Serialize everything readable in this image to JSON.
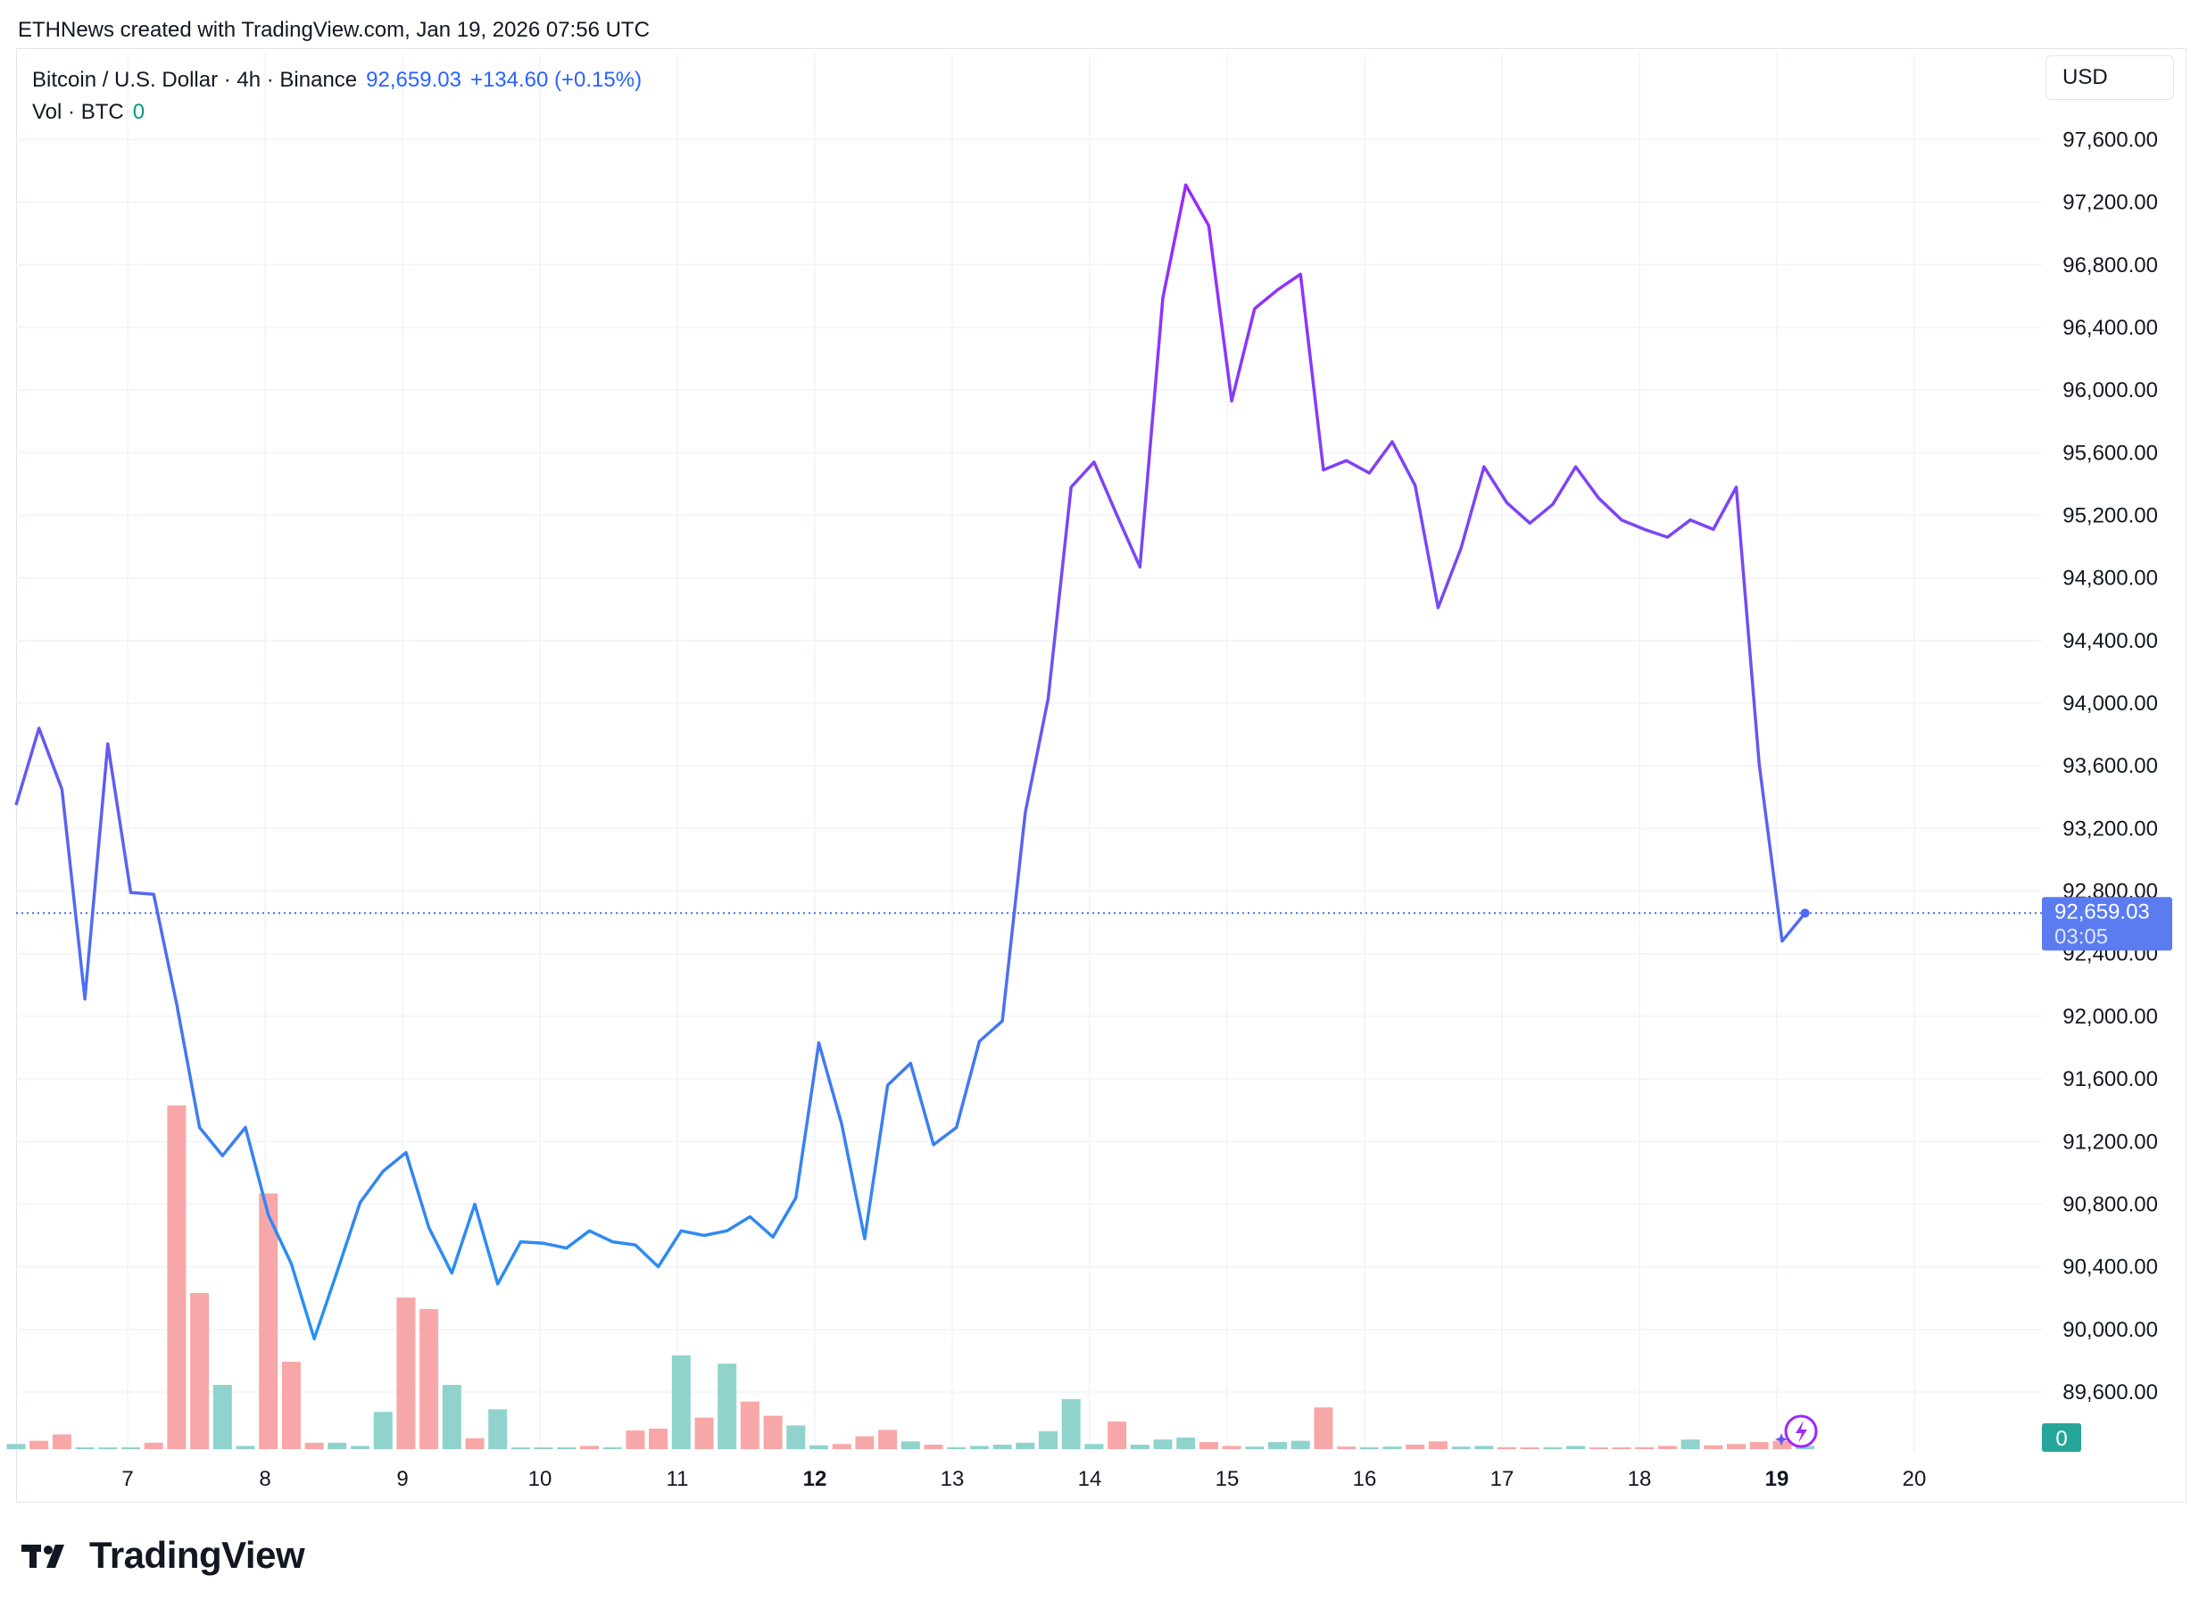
{
  "header": {
    "title": "ETHNews created with TradingView.com, Jan 19, 2026 07:56 UTC"
  },
  "legend": {
    "symbol": "Bitcoin / U.S. Dollar · 4h · Binance",
    "price": "92,659.03",
    "change": "+134.60 (+0.15%)",
    "vol_label": "Vol · BTC",
    "vol_value": "0"
  },
  "currency": "USD",
  "price_label": {
    "value": "92,659.03",
    "countdown": "03:05"
  },
  "volume_label": "0",
  "brand": {
    "name": "TradingView",
    "logo": "tradingview-logo"
  },
  "watermark_icon": "lightning-icon",
  "colors": {
    "line_blue": "#2196f3",
    "line_purple": "#9c27ff",
    "vol_up": "#8fd3cc",
    "vol_down": "#f7a7a7",
    "price_tag": "#5b7cf0",
    "grid": "#f0f3fa"
  },
  "chart_data": {
    "type": "line",
    "title": "Bitcoin / U.S. Dollar · 4h · Binance",
    "ylim": [
      88800,
      98400
    ],
    "y_ticks": [
      "89,600.00",
      "90,000.00",
      "90,400.00",
      "90,800.00",
      "91,200.00",
      "91,600.00",
      "92,000.00",
      "92,400.00",
      "92,800.00",
      "93,200.00",
      "93,600.00",
      "94,000.00",
      "94,400.00",
      "94,800.00",
      "95,200.00",
      "95,600.00",
      "96,000.00",
      "96,400.00",
      "96,800.00",
      "97,200.00",
      "97,600.00"
    ],
    "y_tick_values": [
      89600,
      90000,
      90400,
      90800,
      91200,
      91600,
      92000,
      92400,
      92800,
      93200,
      93600,
      94000,
      94400,
      94800,
      95200,
      95600,
      96000,
      96400,
      96800,
      97200,
      97600
    ],
    "x_ticks": [
      {
        "label": "7",
        "day": 7,
        "bold": false
      },
      {
        "label": "8",
        "day": 8,
        "bold": false
      },
      {
        "label": "9",
        "day": 9,
        "bold": false
      },
      {
        "label": "10",
        "day": 10,
        "bold": false
      },
      {
        "label": "11",
        "day": 11,
        "bold": false
      },
      {
        "label": "12",
        "day": 12,
        "bold": true
      },
      {
        "label": "13",
        "day": 13,
        "bold": false
      },
      {
        "label": "14",
        "day": 14,
        "bold": false
      },
      {
        "label": "15",
        "day": 15,
        "bold": false
      },
      {
        "label": "16",
        "day": 16,
        "bold": false
      },
      {
        "label": "17",
        "day": 17,
        "bold": false
      },
      {
        "label": "18",
        "day": 18,
        "bold": false
      },
      {
        "label": "19",
        "day": 19,
        "bold": true
      },
      {
        "label": "20",
        "day": 20,
        "bold": false
      }
    ],
    "series": [
      {
        "values": [
          93350,
          93840,
          93450,
          92110,
          93740,
          92790,
          92780,
          92080,
          91290,
          91110,
          91290,
          90730,
          90420,
          89940,
          90370,
          90810,
          91010,
          91130,
          90650,
          90360,
          90800,
          90290,
          90560,
          90550,
          90520,
          90630,
          90560,
          90540,
          90400,
          90630,
          90600,
          90630,
          90720,
          90590,
          90840,
          91830,
          91310,
          90580,
          91560,
          91700,
          91180,
          91290,
          91840,
          91970,
          93300,
          94030,
          95380,
          95540,
          95200,
          94870,
          96590,
          97310,
          97050,
          95930,
          96520,
          96640,
          96740,
          95490,
          95550,
          95470,
          95670,
          95390,
          94610,
          94990,
          95510,
          95280,
          95150,
          95270,
          95510,
          95310,
          95170,
          95110,
          95060,
          95170,
          95110,
          95380,
          93610,
          92480,
          92659
        ]
      },
      {
        "name": "Vol · BTC",
        "type": "bar",
        "values": [
          0.8,
          1.3,
          2.3,
          0.2,
          0.2,
          0.2,
          1.0,
          53.5,
          24.3,
          10.0,
          0.5,
          39.8,
          13.6,
          1.0,
          1.0,
          0.5,
          5.8,
          23.6,
          21.8,
          10.0,
          1.7,
          6.2,
          0.2,
          0.2,
          0.3,
          0.5,
          0.3,
          2.9,
          3.2,
          14.6,
          4.9,
          13.3,
          7.4,
          5.2,
          3.7,
          0.6,
          0.8,
          2.0,
          3.0,
          1.2,
          0.7,
          0.3,
          0.5,
          0.7,
          1.0,
          2.8,
          7.8,
          0.8,
          4.3,
          0.7,
          1.5,
          1.8,
          1.1,
          0.5,
          0.4,
          1.1,
          1.3,
          6.5,
          0.4,
          0.3,
          0.4,
          0.7,
          1.2,
          0.4,
          0.5,
          0.3,
          0.2,
          0.3,
          0.5,
          0.2,
          0.2,
          0.3,
          0.5,
          1.5,
          0.6,
          0.8,
          1.1,
          1.3,
          0.5
        ],
        "down": [
          false,
          true,
          true,
          false,
          false,
          false,
          true,
          true,
          true,
          false,
          false,
          true,
          true,
          true,
          false,
          false,
          false,
          true,
          true,
          false,
          true,
          false,
          false,
          false,
          false,
          true,
          false,
          true,
          true,
          false,
          true,
          false,
          true,
          true,
          false,
          false,
          true,
          true,
          true,
          false,
          true,
          false,
          false,
          false,
          false,
          false,
          false,
          false,
          true,
          false,
          false,
          false,
          true,
          true,
          false,
          false,
          false,
          true,
          true,
          false,
          false,
          true,
          true,
          false,
          false,
          true,
          true,
          false,
          false,
          true,
          true,
          true,
          true,
          false,
          true,
          true,
          true,
          true,
          false
        ]
      }
    ]
  }
}
